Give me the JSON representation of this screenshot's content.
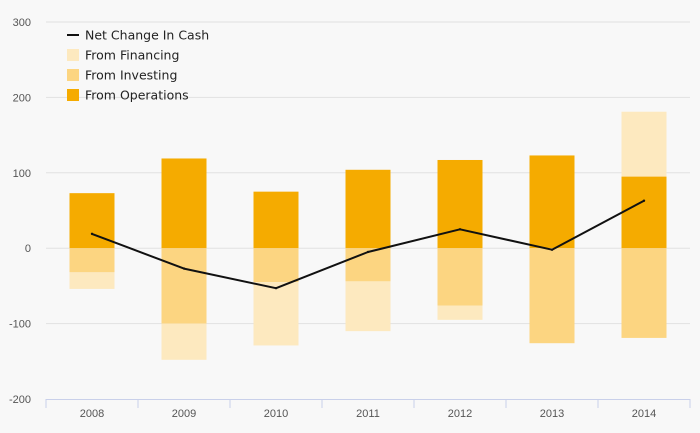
{
  "chart_data": {
    "type": "bar",
    "subtype": "stacked-bar-with-line",
    "title": "",
    "xlabel": "",
    "ylabel": "",
    "ylim": [
      -200,
      300
    ],
    "yticks": [
      300,
      200,
      100,
      0,
      -100,
      -200
    ],
    "grid": true,
    "legend_position": "top-left",
    "categories": [
      "2008",
      "2009",
      "2010",
      "2011",
      "2012",
      "2013",
      "2014"
    ],
    "series": [
      {
        "name": "From Operations",
        "kind": "bar",
        "color": "#f5ab00",
        "values": [
          73,
          119,
          75,
          104,
          117,
          123,
          95
        ]
      },
      {
        "name": "From Investing",
        "kind": "bar",
        "color": "#fcd581",
        "values": [
          -32,
          -100,
          -45,
          -44,
          -76,
          -126,
          -119
        ]
      },
      {
        "name": "From Financing",
        "kind": "bar",
        "color": "#fde9bf",
        "values": [
          -22,
          -48,
          -84,
          -66,
          -19,
          0,
          86
        ]
      },
      {
        "name": "Net Change In Cash",
        "kind": "line",
        "color": "#111111",
        "values": [
          19,
          -27,
          -53,
          -5,
          25,
          -2,
          63
        ]
      }
    ],
    "legend_order": [
      "Net Change In Cash",
      "From Financing",
      "From Investing",
      "From Operations"
    ]
  },
  "colors": {
    "background": "#f8f8f8",
    "grid": "#e1e1e1",
    "axis": "#c9d0ea",
    "operations": "#f5ab00",
    "investing": "#fcd581",
    "financing": "#fde9bf",
    "net": "#111111"
  }
}
